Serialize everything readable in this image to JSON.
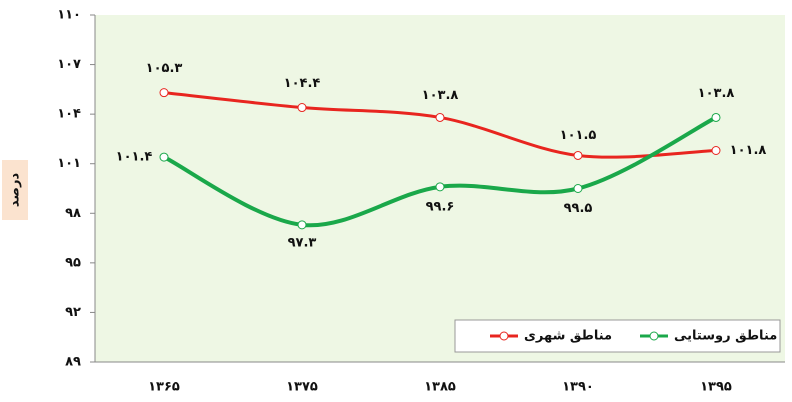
{
  "chart_data": {
    "type": "line",
    "y_label": "درصد",
    "categories": [
      "۱۳۶۵",
      "۱۳۷۵",
      "۱۳۸۵",
      "۱۳۹۰",
      "۱۳۹۵"
    ],
    "series": [
      {
        "name": "مناطق شهری",
        "color": "#e8251f",
        "values": [
          105.3,
          104.4,
          103.8,
          101.5,
          101.8
        ],
        "value_labels": [
          "۱۰۵.۳",
          "۱۰۴.۴",
          "۱۰۳.۸",
          "۱۰۱.۵",
          "۱۰۱.۸"
        ]
      },
      {
        "name": "مناطق روستایی",
        "color": "#1aa84a",
        "values": [
          101.4,
          97.3,
          99.6,
          99.5,
          103.8
        ],
        "value_labels": [
          "۱۰۱.۴",
          "۹۷.۳",
          "۹۹.۶",
          "۹۹.۵",
          "۱۰۳.۸"
        ]
      }
    ],
    "ylim": [
      89,
      110
    ],
    "yticks": [
      {
        "value": 89,
        "label": "۸۹"
      },
      {
        "value": 92,
        "label": "۹۲"
      },
      {
        "value": 95,
        "label": "۹۵"
      },
      {
        "value": 98,
        "label": "۹۸"
      },
      {
        "value": 101,
        "label": "۱۰۱"
      },
      {
        "value": 104,
        "label": "۱۰۴"
      },
      {
        "value": 107,
        "label": "۱۰۷"
      },
      {
        "value": 110,
        "label": "۱۱۰"
      }
    ],
    "grid": false,
    "legend": "lower right"
  }
}
